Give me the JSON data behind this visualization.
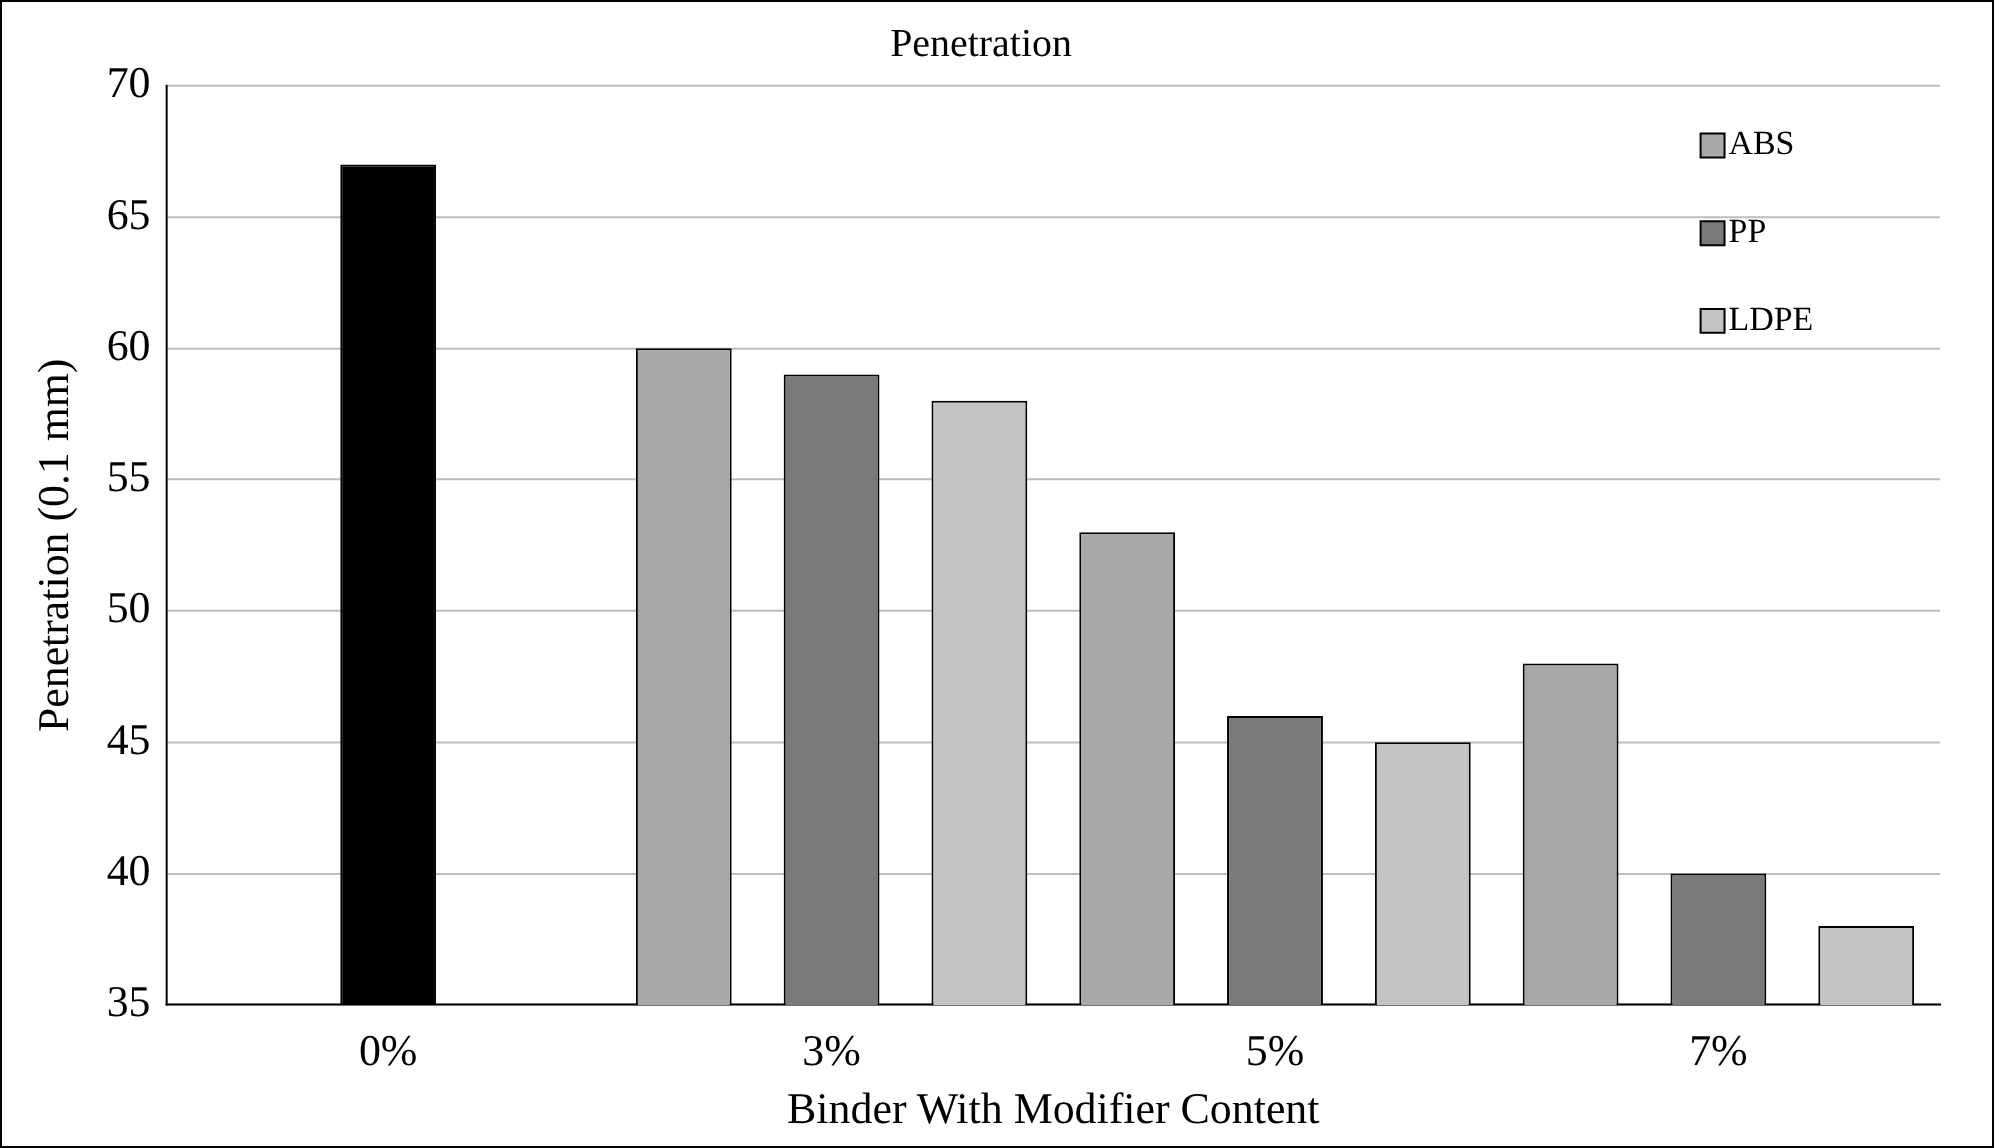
{
  "chart_data": {
    "type": "bar",
    "title": "Penetration",
    "xlabel": "Binder With Modifier Content",
    "ylabel": "Penetration (0.1 mm)",
    "categories": [
      "0%",
      "3%",
      "5%",
      "7%"
    ],
    "series": [
      {
        "color": "#000000",
        "values": [
          67,
          null,
          null,
          null
        ]
      },
      {
        "name": "ABS",
        "color": "#a8a8a8",
        "values": [
          null,
          60,
          53,
          48
        ]
      },
      {
        "name": "PP",
        "color": "#7a7a7a",
        "values": [
          null,
          59,
          46,
          40
        ]
      },
      {
        "name": "LDPE",
        "color": "#c4c4c4",
        "values": [
          null,
          58,
          45,
          38
        ]
      }
    ],
    "ylim": [
      35,
      70
    ],
    "yticks": [
      35,
      40,
      45,
      50,
      55,
      60,
      65,
      70
    ],
    "grid": "y",
    "legend": "top right"
  }
}
